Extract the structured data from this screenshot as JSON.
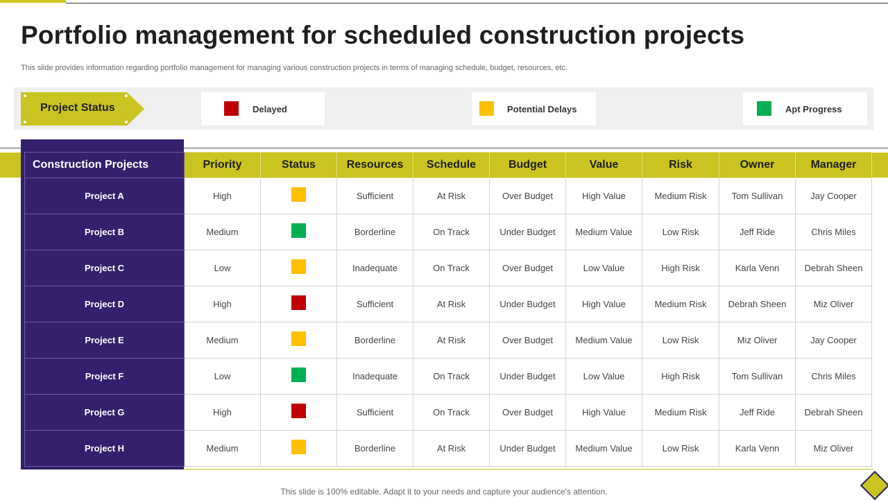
{
  "slide": {
    "title": "Portfolio management for scheduled construction projects",
    "subtitle": "This slide provides information regarding portfolio management for managing various construction projects in terms of managing schedule, budget, resources, etc.",
    "footer": "This slide is 100% editable. Adapt it to your needs and capture your audience's attention."
  },
  "legend": {
    "label": "Project Status",
    "items": [
      {
        "label": "Delayed",
        "color": "#c00000"
      },
      {
        "label": "Potential Delays",
        "color": "#ffc000"
      },
      {
        "label": "Apt Progress",
        "color": "#00b050"
      }
    ]
  },
  "colors": {
    "accent": "#c9c41f",
    "purple": "#34206c"
  },
  "table": {
    "headers": [
      "Construction Projects",
      "Priority",
      "Status",
      "Resources",
      "Schedule",
      "Budget",
      "Value",
      "Risk",
      "Owner",
      "Manager"
    ],
    "rows": [
      {
        "project": "Project A",
        "priority": "High",
        "status": "Potential Delays",
        "resources": "Sufficient",
        "schedule": "At Risk",
        "budget": "Over Budget",
        "value": "High Value",
        "risk": "Medium Risk",
        "owner": "Tom Sullivan",
        "manager": "Jay Cooper"
      },
      {
        "project": "Project B",
        "priority": "Medium",
        "status": "Apt Progress",
        "resources": "Borderline",
        "schedule": "On Track",
        "budget": "Under Budget",
        "value": "Medium Value",
        "risk": "Low Risk",
        "owner": "Jeff Ride",
        "manager": "Chris Miles"
      },
      {
        "project": "Project C",
        "priority": "Low",
        "status": "Potential Delays",
        "resources": "Inadequate",
        "schedule": "On Track",
        "budget": "Over Budget",
        "value": "Low Value",
        "risk": "High Risk",
        "owner": "Karla Venn",
        "manager": "Debrah Sheen"
      },
      {
        "project": "Project D",
        "priority": "High",
        "status": "Delayed",
        "resources": "Sufficient",
        "schedule": "At Risk",
        "budget": "Under Budget",
        "value": "High Value",
        "risk": "Medium Risk",
        "owner": "Debrah Sheen",
        "manager": "Miz Oliver"
      },
      {
        "project": "Project E",
        "priority": "Medium",
        "status": "Potential Delays",
        "resources": "Borderline",
        "schedule": "At Risk",
        "budget": "Over Budget",
        "value": "Medium Value",
        "risk": "Low Risk",
        "owner": "Miz Oliver",
        "manager": "Jay Cooper"
      },
      {
        "project": "Project F",
        "priority": "Low",
        "status": "Apt Progress",
        "resources": "Inadequate",
        "schedule": "On Track",
        "budget": "Under Budget",
        "value": "Low Value",
        "risk": "High Risk",
        "owner": "Tom Sullivan",
        "manager": "Chris Miles"
      },
      {
        "project": "Project G",
        "priority": "High",
        "status": "Delayed",
        "resources": "Sufficient",
        "schedule": "On Track",
        "budget": "Over Budget",
        "value": "High Value",
        "risk": "Medium Risk",
        "owner": "Jeff Ride",
        "manager": "Debrah Sheen"
      },
      {
        "project": "Project H",
        "priority": "Medium",
        "status": "Potential Delays",
        "resources": "Borderline",
        "schedule": "At Risk",
        "budget": "Under Budget",
        "value": "Medium Value",
        "risk": "Low Risk",
        "owner": "Karla Venn",
        "manager": "Miz Oliver"
      }
    ]
  }
}
